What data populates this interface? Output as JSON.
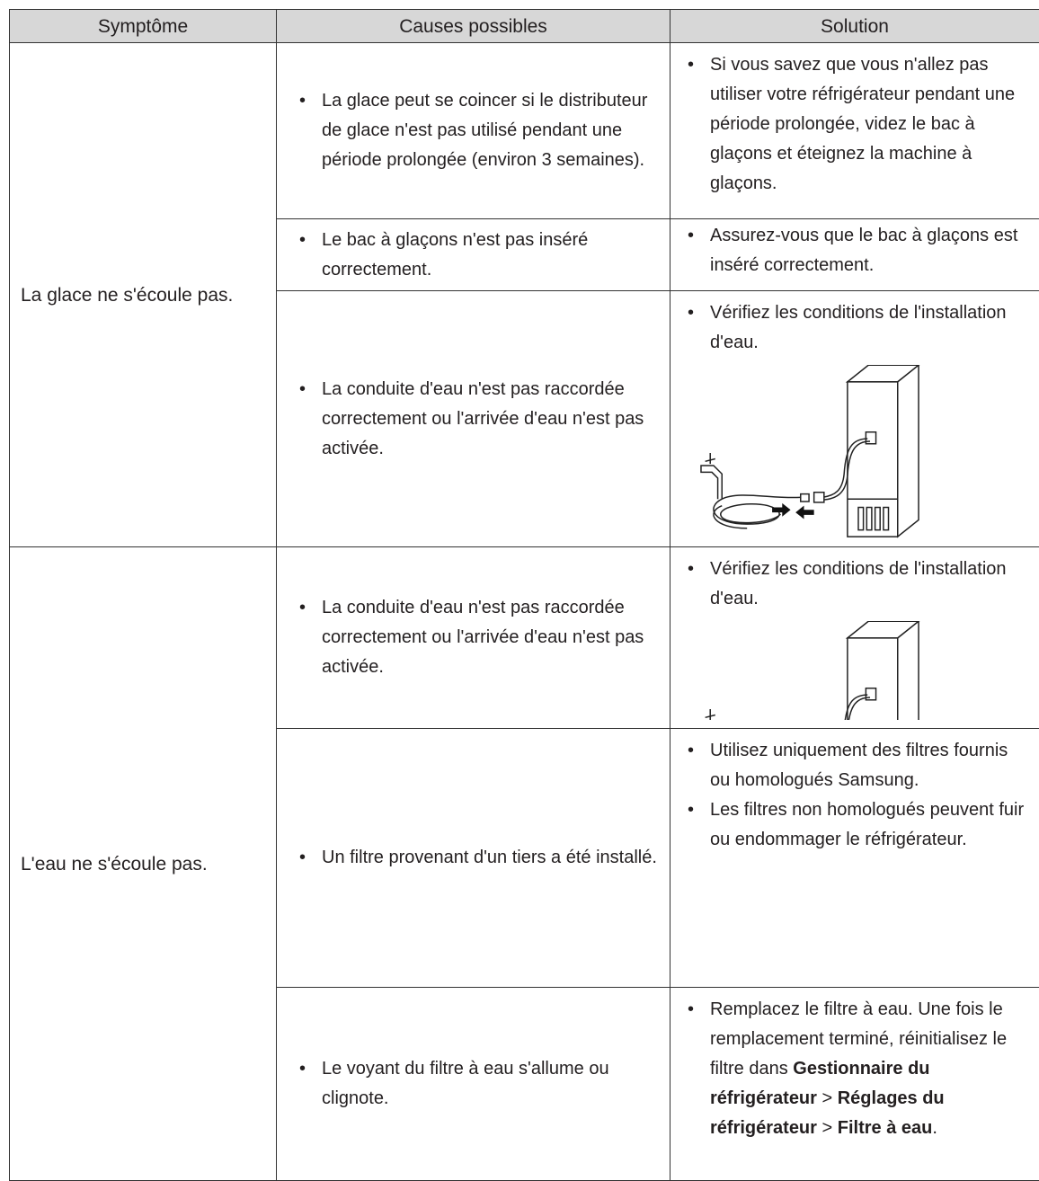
{
  "table": {
    "header": [
      "Symptôme",
      "Causes possibles",
      "Solution"
    ],
    "groups": [
      {
        "symptom": "La glace ne s'écoule pas.",
        "rows": [
          {
            "cause": "La glace peut se coincer si le distributeur de glace n'est pas utilisé pendant une période prolongée (environ 3 semaines).",
            "solution": [
              "Si vous savez que vous n'allez pas utiliser votre réfrigérateur pendant une période prolongée, videz le bac à glaçons et éteignez la machine à glaçons."
            ]
          },
          {
            "cause": "Le bac à glaçons n'est pas inséré correctement.",
            "solution": [
              "Assurez-vous que le bac à glaçons est inséré correctement."
            ]
          },
          {
            "cause": "La conduite d'eau n'est pas raccordée correctement ou l'arrivée d'eau n'est pas activée.",
            "solution": [
              "Vérifiez les conditions de l'installation d'eau."
            ]
          }
        ]
      },
      {
        "symptom": "L'eau ne s'écoule pas.",
        "rows": [
          {
            "cause": "La conduite d'eau n'est pas raccordée correctement ou l'arrivée d'eau n'est pas activée.",
            "solution": [
              "Vérifiez les conditions de l'installation d'eau."
            ]
          },
          {
            "cause": "Un filtre provenant d'un tiers a été installé.",
            "solution": [
              "Utilisez uniquement des filtres fournis ou homologués Samsung.",
              "Les filtres non homologués peuvent fuir ou endommager le réfrigérateur."
            ]
          },
          {
            "cause": "Le voyant du filtre à eau s'allume ou clignote.",
            "solution": [
              {
                "segments": [
                  {
                    "text": "Remplacez le filtre à eau. Une fois le remplacement terminé, réinitialisez le filtre dans ",
                    "bold": false
                  },
                  {
                    "text": "Gestionnaire du réfrigérateur",
                    "bold": true
                  },
                  {
                    "text": " > ",
                    "bold": false
                  },
                  {
                    "text": "Réglages du réfrigérateur",
                    "bold": true
                  },
                  {
                    "text": " > ",
                    "bold": false
                  },
                  {
                    "text": "Filtre à eau",
                    "bold": true
                  },
                  {
                    "text": ".",
                    "bold": false
                  }
                ]
              }
            ]
          }
        ]
      }
    ]
  }
}
